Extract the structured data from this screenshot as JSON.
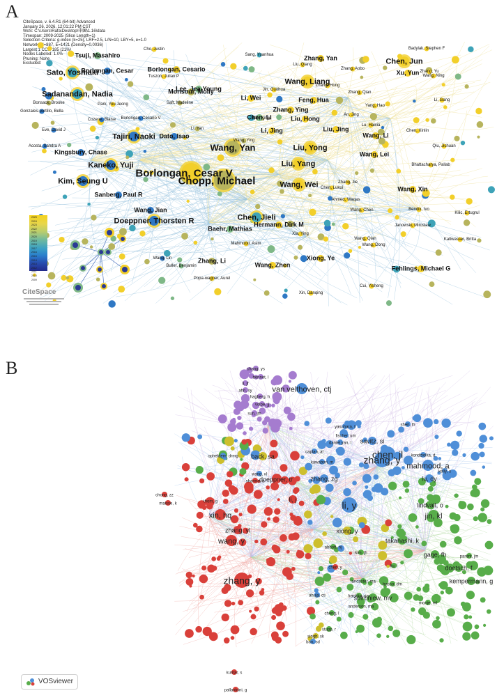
{
  "panel_a": {
    "label": "A",
    "info_lines": [
      "CiteSpace, v. 6.4.R1 (64-bit) Advanced",
      "January 26, 2026, 12:01:22 PM CST",
      "WoS: C:\\Users\\Rafa\\Desktop\\中国\\1.16\\data",
      "Timespan: 2009-2025 (Slice Length=1)",
      "Selection Criteria: g-index (k=25), LRF=2.5, L/N=10, LBY=5, e=1.0",
      "Network: N=887, E=1421 (Density=0.0036)",
      "Largest 1 CCs: 185 (21%)",
      "Nodes Labeled: 1.0%",
      "Pruning: None",
      "Excluded:"
    ],
    "logo_text": "CiteSpace",
    "legend_colors": [
      "#f5d21d",
      "#e9d64a",
      "#b8cd6e",
      "#6cb8a0",
      "#3aa0c5",
      "#2a7fcc",
      "#284fb0",
      "#232a8a"
    ],
    "legend_years": [
      "2025",
      "2024",
      "2023",
      "2022",
      "2021",
      "2020",
      "2019",
      "2018",
      "2017",
      "2016",
      "2015",
      "2014",
      "2013",
      "2012",
      "2011",
      "2010",
      "2009"
    ],
    "node_colors": {
      "yellow": "#f2cf2a",
      "olive": "#b7b45d",
      "green": "#7fb887",
      "teal": "#3ea3b8",
      "blue": "#2f78c4",
      "navy": "#2a3a94",
      "link_yellow": "#efe3a0",
      "link_blue": "#9ec6e0"
    },
    "labels": [
      {
        "text": "Cho, Justin",
        "size": "s"
      },
      {
        "text": "Badylak, Stephen F",
        "size": "s"
      },
      {
        "text": "Tsuji, Masahiro",
        "size": "m"
      },
      {
        "text": "Sang, Yuanhua",
        "size": "s"
      },
      {
        "text": "Zhang, Yan",
        "size": "m"
      },
      {
        "text": "Chen, Jun",
        "size": "l"
      },
      {
        "text": "Liu, Qiang",
        "size": "s"
      },
      {
        "text": "Zhang, Aobo",
        "size": "s"
      },
      {
        "text": "Xu, Yun",
        "size": "m"
      },
      {
        "text": "Zhang, Yu",
        "size": "s"
      },
      {
        "text": "Wang, Ning",
        "size": "s"
      },
      {
        "text": "Sato, Yoshiaki",
        "size": "l"
      },
      {
        "text": "Borlongan, Cesar",
        "size": "m"
      },
      {
        "text": "Borlongan, Cesario",
        "size": "m"
      },
      {
        "text": "Tuszon, Julian P",
        "size": "s"
      },
      {
        "text": "Wang, Liang",
        "size": "l"
      },
      {
        "text": "Zhang, Hong",
        "size": "s"
      },
      {
        "text": "Monsour, Molly",
        "size": "m"
      },
      {
        "text": "Lee, Jea-Young",
        "size": "m"
      },
      {
        "text": "Sadanandan, Nadia",
        "size": "l"
      },
      {
        "text": "Jin, Guohua",
        "size": "s"
      },
      {
        "text": "Li, Wei",
        "size": "m"
      },
      {
        "text": "Zhang, Qian",
        "size": "s"
      },
      {
        "text": "Bonsack, Brooke",
        "size": "s"
      },
      {
        "text": "Park, You Jeong",
        "size": "s"
      },
      {
        "text": "Saft, Madeline",
        "size": "s"
      },
      {
        "text": "Feng, Hua",
        "size": "m"
      },
      {
        "text": "Li, Gang",
        "size": "s"
      },
      {
        "text": "Yang, Hao",
        "size": "s"
      },
      {
        "text": "Gonzales-portillo, Bella",
        "size": "s"
      },
      {
        "text": "Borlongan, Cesario V",
        "size": "s"
      },
      {
        "text": "Zhang, Ying",
        "size": "m"
      },
      {
        "text": "An, Jing",
        "size": "s"
      },
      {
        "text": "Bao, Xinjie",
        "size": "s"
      },
      {
        "text": "Chen, Li",
        "size": "m"
      },
      {
        "text": "Liu, Hong",
        "size": "m"
      },
      {
        "text": "Lu, Haixia",
        "size": "s"
      },
      {
        "text": "Cozene, Blaise",
        "size": "s"
      },
      {
        "text": "Eve, David J",
        "size": "s"
      },
      {
        "text": "Li, Yan",
        "size": "s"
      },
      {
        "text": "Li, Jing",
        "size": "m"
      },
      {
        "text": "Chen, Xinlin",
        "size": "s"
      },
      {
        "text": "Liu, Jing",
        "size": "m"
      },
      {
        "text": "Wang, Li",
        "size": "m"
      },
      {
        "text": "Tajiri, Naoki",
        "size": "l"
      },
      {
        "text": "Dato, Isao",
        "size": "m"
      },
      {
        "text": "Qiu, Jichuan",
        "size": "s"
      },
      {
        "text": "Wang, Ying",
        "size": "s"
      },
      {
        "text": "Acosta, Sandra A",
        "size": "s"
      },
      {
        "text": "Wang, Yan",
        "size": "xl"
      },
      {
        "text": "Liu, Yong",
        "size": "l"
      },
      {
        "text": "Kingsbury, Chase",
        "size": "m"
      },
      {
        "text": "Wang, Lei",
        "size": "m"
      },
      {
        "text": "Kaneko, Yuji",
        "size": "l"
      },
      {
        "text": "Borlongan, Cesar V",
        "size": "xxl"
      },
      {
        "text": "Liu, Yang",
        "size": "l"
      },
      {
        "text": "Bhattacharya, Pallab",
        "size": "s"
      },
      {
        "text": "Kim, Seung U",
        "size": "l"
      },
      {
        "text": "Wang, Wei",
        "size": "l"
      },
      {
        "text": "Zhang, Jie",
        "size": "s"
      },
      {
        "text": "Chen, Lukui",
        "size": "s"
      },
      {
        "text": "Wang, Xin",
        "size": "m"
      },
      {
        "text": "Sanberg, Paul R",
        "size": "m"
      },
      {
        "text": "Chopp, Michael",
        "size": "xxl"
      },
      {
        "text": "Ahmed, Waqas",
        "size": "s"
      },
      {
        "text": "Wang, Jian",
        "size": "m"
      },
      {
        "text": "Bendix, Ivo",
        "size": "s"
      },
      {
        "text": "Chen, Jieli",
        "size": "l"
      },
      {
        "text": "Wang, Chen",
        "size": "s"
      },
      {
        "text": "Kilic, Ertugrul",
        "size": "s"
      },
      {
        "text": "Janowski, Miroslaw",
        "size": "s"
      },
      {
        "text": "Doeppner, Thorsten R",
        "size": "l"
      },
      {
        "text": "Hermann, Dirk M",
        "size": "m"
      },
      {
        "text": "Wang, Qian",
        "size": "s"
      },
      {
        "text": "Baehr, Mathias",
        "size": "m"
      },
      {
        "text": "Xia, Ying",
        "size": "s"
      },
      {
        "text": "Kaltwasser, Britta",
        "size": "s"
      },
      {
        "text": "Mahmood, Asim",
        "size": "s"
      },
      {
        "text": "Wang, Dong",
        "size": "s"
      },
      {
        "text": "Wang, Lin",
        "size": "s"
      },
      {
        "text": "Xiong, Ye",
        "size": "m"
      },
      {
        "text": "Zhang, Li",
        "size": "m"
      },
      {
        "text": "Buller, Benjamin",
        "size": "s"
      },
      {
        "text": "Wang, Zhen",
        "size": "m"
      },
      {
        "text": "Fehlings, Michael G",
        "size": "m"
      },
      {
        "text": "Popa-wagner, Aurel",
        "size": "s"
      },
      {
        "text": "Cui, Yisheng",
        "size": "s"
      },
      {
        "text": "Xin, Danqing",
        "size": "s"
      }
    ]
  },
  "panel_b": {
    "label": "B",
    "logo_text": "VOSviewer",
    "cluster_colors": {
      "red": "#d9403a",
      "blue": "#4f8fd8",
      "green": "#58ad4a",
      "purple": "#a57ccf",
      "yellow": "#cdbf2e",
      "link_red": "#f0a9a4",
      "link_green": "#b6dca6",
      "link_blue": "#a9c8ee",
      "link_purple": "#d2bce6"
    },
    "labels": [
      {
        "text": "chang, ys",
        "size": "s"
      },
      {
        "text": "bennet, l",
        "size": "s"
      },
      {
        "text": "li, jf",
        "size": "s"
      },
      {
        "text": "ahn, sy",
        "size": "s"
      },
      {
        "text": "van velthoven, ctj",
        "size": "l"
      },
      {
        "text": "hagberg, h",
        "size": "s"
      },
      {
        "text": "volpe, jj",
        "size": "s"
      },
      {
        "text": "sun, jm",
        "size": "s"
      },
      {
        "text": "shen, lh",
        "size": "s"
      },
      {
        "text": "yasuhara, t",
        "size": "s"
      },
      {
        "text": "fischer, um",
        "size": "s"
      },
      {
        "text": "daniel yan, l",
        "size": "s"
      },
      {
        "text": "savitz, si",
        "size": "m"
      },
      {
        "text": "chen, jl",
        "size": "xl"
      },
      {
        "text": "back, sa",
        "size": "m"
      },
      {
        "text": "caplan, al",
        "size": "s"
      },
      {
        "text": "zhang, y",
        "size": "xl"
      },
      {
        "text": "kondziolka, d",
        "size": "s"
      },
      {
        "text": "mahmood, a",
        "size": "l"
      },
      {
        "text": "opheldem, drmg",
        "size": "s"
      },
      {
        "text": "wang, xl",
        "size": "s"
      },
      {
        "text": "kawabori, m",
        "size": "s"
      },
      {
        "text": "sharma, a",
        "size": "s"
      },
      {
        "text": "doeppner, tr",
        "size": "m"
      },
      {
        "text": "zhang, zg",
        "size": "m"
      },
      {
        "text": "lu, dy",
        "size": "m"
      },
      {
        "text": "kelly, s",
        "size": "s"
      },
      {
        "text": "chong, zz",
        "size": "s"
      },
      {
        "text": "maisse, k",
        "size": "s"
      },
      {
        "text": "thom, g",
        "size": "s"
      },
      {
        "text": "li, j",
        "size": "m"
      },
      {
        "text": "li, y",
        "size": "xl"
      },
      {
        "text": "lindvall, o",
        "size": "m"
      },
      {
        "text": "xin, hq",
        "size": "l"
      },
      {
        "text": "jin, kl",
        "size": "l"
      },
      {
        "text": "zhang, yl",
        "size": "m"
      },
      {
        "text": "wang, y",
        "size": "l"
      },
      {
        "text": "xiong, y",
        "size": "m"
      },
      {
        "text": "takahashi, k",
        "size": "m"
      },
      {
        "text": "abbott, nj",
        "size": "s"
      },
      {
        "text": "kim, jh",
        "size": "s"
      },
      {
        "text": "gage, fh",
        "size": "m"
      },
      {
        "text": "parent, jm",
        "size": "s"
      },
      {
        "text": "liu, l",
        "size": "s"
      },
      {
        "text": "doetsch, f",
        "size": "m"
      },
      {
        "text": "chen, y",
        "size": "s"
      },
      {
        "text": "zhang, y",
        "size": "xl"
      },
      {
        "text": "lancaster, ma",
        "size": "s"
      },
      {
        "text": "basso, dm",
        "size": "s"
      },
      {
        "text": "franklin, rjm",
        "size": "s"
      },
      {
        "text": "kempermann, g",
        "size": "m"
      },
      {
        "text": "sofroniew, mv",
        "size": "m"
      },
      {
        "text": "monje, ml",
        "size": "s"
      },
      {
        "text": "anderson, ma",
        "size": "s"
      },
      {
        "text": "ahuja, cs",
        "size": "s"
      },
      {
        "text": "cheng, l",
        "size": "s"
      },
      {
        "text": "stupp, r",
        "size": "s"
      },
      {
        "text": "singh, sk",
        "size": "s"
      },
      {
        "text": "ban, sd",
        "size": "s"
      },
      {
        "text": "kumar, s",
        "size": "s"
      },
      {
        "text": "pallavicini, g",
        "size": "s"
      }
    ]
  }
}
